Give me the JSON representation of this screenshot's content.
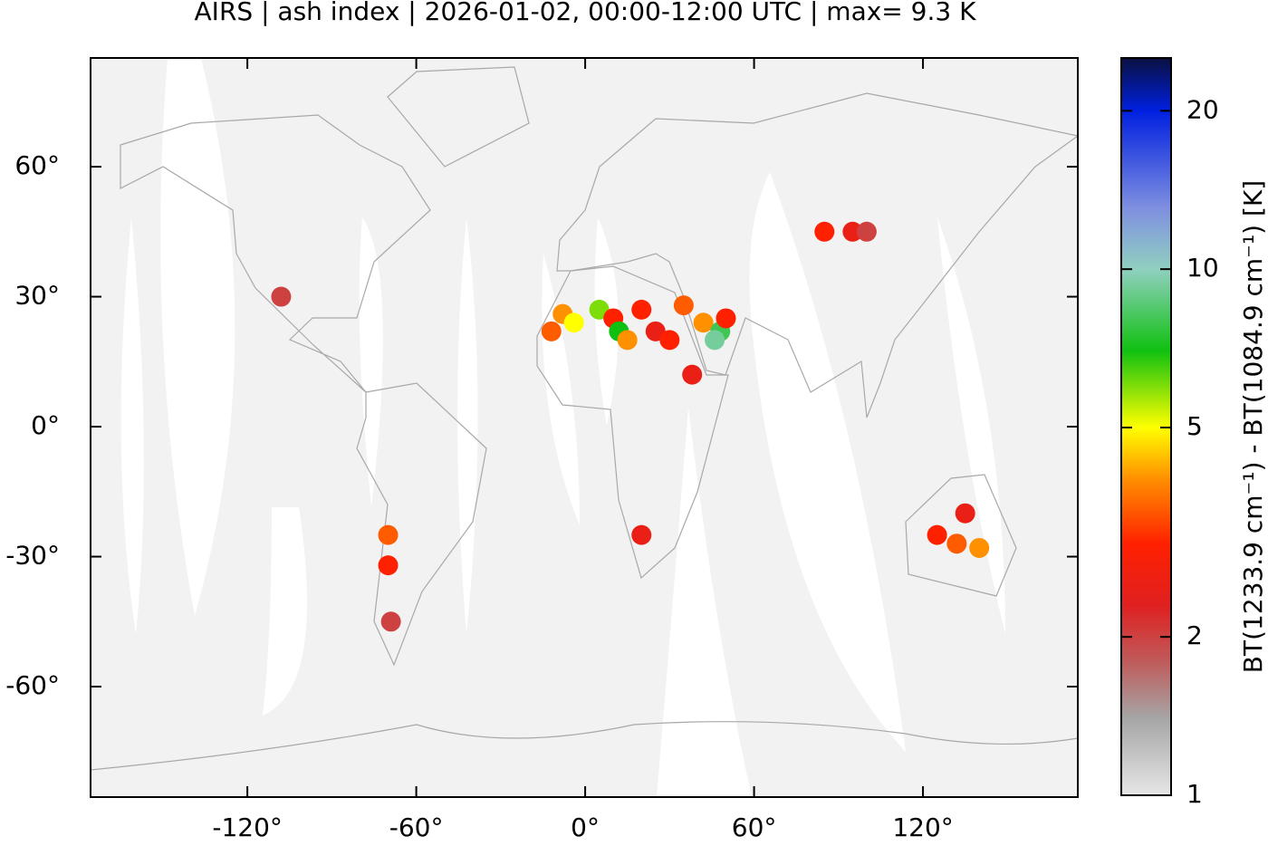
{
  "chart_data": {
    "type": "map",
    "title": "AIRS | ash index | 2026-01-02, 00:00-12:00 UTC | max= 9.3 K",
    "xlim": [
      -175.7,
      175
    ],
    "ylim": [
      -85.5,
      85.1
    ],
    "xticks": [
      {
        "value": -120,
        "label": "-120°"
      },
      {
        "value": -60,
        "label": "-60°"
      },
      {
        "value": 0,
        "label": "0°"
      },
      {
        "value": 60,
        "label": "60°"
      },
      {
        "value": 120,
        "label": "120°"
      }
    ],
    "yticks": [
      {
        "value": 60,
        "label": "60°"
      },
      {
        "value": 30,
        "label": "30°"
      },
      {
        "value": 0,
        "label": "0°"
      },
      {
        "value": -30,
        "label": "-30°"
      },
      {
        "value": -60,
        "label": "-60°"
      }
    ],
    "colorbar": {
      "label": "BT(1233.9 cm⁻¹) - BT(1084.9 cm⁻¹) [K]",
      "clim": [
        1,
        25.2
      ],
      "ticks": [
        1,
        2,
        5,
        10,
        20
      ],
      "log": true,
      "colormap": [
        {
          "value": 1,
          "color": "#e6e6e6"
        },
        {
          "value": 1.4,
          "color": "#a6a6a6"
        },
        {
          "value": 1.8,
          "color": "#c05a5a"
        },
        {
          "value": 2.3,
          "color": "#e02020"
        },
        {
          "value": 3,
          "color": "#ff2000"
        },
        {
          "value": 4,
          "color": "#ff9000"
        },
        {
          "value": 5,
          "color": "#ffff00"
        },
        {
          "value": 7,
          "color": "#10c010"
        },
        {
          "value": 10,
          "color": "#90d0c0"
        },
        {
          "value": 13,
          "color": "#8090e0"
        },
        {
          "value": 20,
          "color": "#0020e0"
        },
        {
          "value": 25.2,
          "color": "#0a1040"
        }
      ]
    },
    "series": [
      {
        "name": "ash index",
        "lon": [
          -12,
          -8,
          -4,
          5,
          10,
          12,
          15,
          20,
          25,
          30,
          35,
          42,
          48,
          46,
          50,
          38,
          85,
          95,
          100,
          -70,
          -70,
          -69,
          20,
          125,
          132,
          140,
          135,
          -108
        ],
        "lat": [
          22,
          26,
          24,
          27,
          25,
          22,
          20,
          27,
          22,
          20,
          28,
          24,
          22,
          20,
          25,
          12,
          45,
          45,
          45,
          -25,
          -32,
          -45,
          -25,
          -25,
          -27,
          -28,
          -20,
          30
        ],
        "values": [
          3.5,
          4,
          5,
          6,
          3,
          7,
          4,
          3,
          2.5,
          3,
          3.5,
          4,
          8,
          9.3,
          3,
          2.5,
          3,
          2.5,
          2,
          3.5,
          3,
          2,
          2.5,
          3,
          3.5,
          4,
          2.5,
          2
        ]
      }
    ]
  }
}
